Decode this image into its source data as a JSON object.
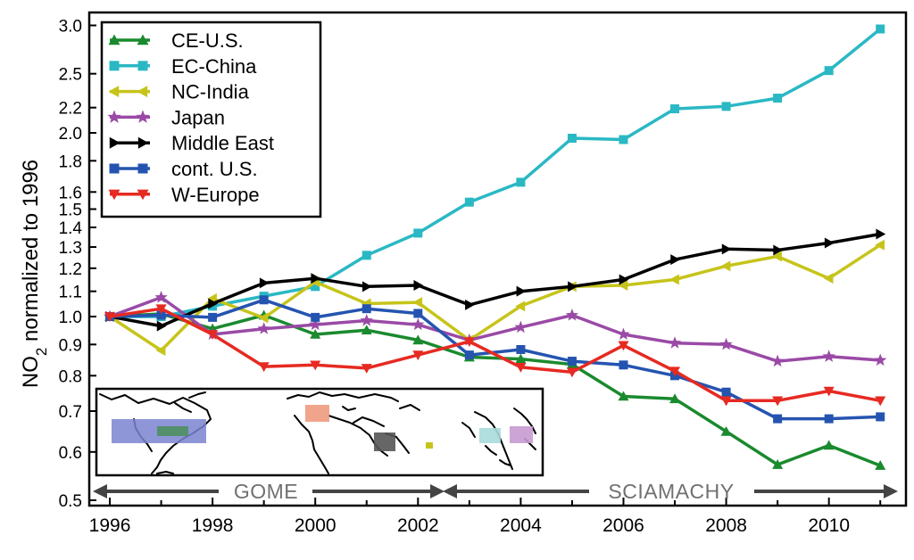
{
  "chart_data": {
    "type": "line",
    "ylabel": "NO2 normalized to 1996",
    "ylabel_main": "NO",
    "ylabel_sub": "2",
    "ylabel_rest": " normalized to 1996",
    "y_scale": "log",
    "ylim": [
      0.49,
      3.15
    ],
    "xlim": [
      1995.6,
      2011.5
    ],
    "y_ticks": [
      0.5,
      0.6,
      0.7,
      0.8,
      0.9,
      1.0,
      1.1,
      1.2,
      1.3,
      1.4,
      1.5,
      1.6,
      1.8,
      2.0,
      2.2,
      2.5,
      3.0
    ],
    "y_tick_labels": [
      "0.5",
      "0.6",
      "0.7",
      "0.8",
      "0.9",
      "1.0",
      "1.1",
      "1.2",
      "1.3",
      "1.4",
      "1.5",
      "1.6",
      "1.8",
      "2.0",
      "2.2",
      "2.5",
      "3.0"
    ],
    "x_ticks": [
      1996,
      1998,
      2000,
      2002,
      2004,
      2006,
      2008,
      2010
    ],
    "x_tick_labels": [
      "1996",
      "1998",
      "2000",
      "2002",
      "2004",
      "2006",
      "2008",
      "2010"
    ],
    "x": [
      1996,
      1997,
      1998,
      1999,
      2000,
      2001,
      2002,
      2003,
      2004,
      2005,
      2006,
      2007,
      2008,
      2009,
      2010,
      2011
    ],
    "legend_position": "top-left",
    "series": [
      {
        "name": "CE-U.S.",
        "color": "#1a8a2e",
        "marker": "triangle-up",
        "values": [
          1.0,
          1.01,
          0.955,
          1.005,
          0.935,
          0.95,
          0.915,
          0.858,
          0.852,
          0.835,
          0.74,
          0.733,
          0.648,
          0.572,
          0.615,
          0.57
        ]
      },
      {
        "name": "EC-China",
        "color": "#2ab8c4",
        "marker": "square",
        "values": [
          1.0,
          1.0,
          1.04,
          1.08,
          1.12,
          1.26,
          1.37,
          1.54,
          1.66,
          1.96,
          1.95,
          2.19,
          2.21,
          2.28,
          2.53,
          2.96
        ]
      },
      {
        "name": "NC-India",
        "color": "#c6c41a",
        "marker": "triangle-left",
        "values": [
          1.0,
          0.88,
          1.07,
          0.995,
          1.14,
          1.05,
          1.055,
          0.915,
          1.04,
          1.12,
          1.125,
          1.15,
          1.21,
          1.255,
          1.155,
          1.31
        ]
      },
      {
        "name": "Japan",
        "color": "#9a4aa6",
        "marker": "star",
        "values": [
          1.0,
          1.075,
          0.935,
          0.955,
          0.97,
          0.985,
          0.97,
          0.915,
          0.96,
          1.005,
          0.935,
          0.905,
          0.9,
          0.845,
          0.86,
          0.848
        ]
      },
      {
        "name": "Middle East",
        "color": "#000000",
        "marker": "triangle-right",
        "values": [
          1.0,
          0.965,
          1.05,
          1.135,
          1.155,
          1.12,
          1.125,
          1.045,
          1.1,
          1.12,
          1.15,
          1.24,
          1.29,
          1.285,
          1.32,
          1.365
        ]
      },
      {
        "name": "cont. U.S.",
        "color": "#2554b0",
        "marker": "square",
        "values": [
          1.0,
          1.005,
          0.997,
          1.065,
          0.997,
          1.03,
          1.012,
          0.865,
          0.883,
          0.845,
          0.833,
          0.8,
          0.752,
          0.68,
          0.68,
          0.685
        ]
      },
      {
        "name": "W-Europe",
        "color": "#e62a22",
        "marker": "triangle-down",
        "values": [
          1.0,
          1.03,
          0.935,
          0.828,
          0.833,
          0.823,
          0.865,
          0.91,
          0.826,
          0.811,
          0.897,
          0.814,
          0.728,
          0.728,
          0.755,
          0.728
        ]
      }
    ],
    "instrument_periods": [
      {
        "name": "GOME",
        "start": 1995.6,
        "end": 2002.6
      },
      {
        "name": "SCIAMACHY",
        "start": 2002.6,
        "end": 2011.5
      }
    ],
    "inset_map": {
      "regions": [
        {
          "color": "#7b84d0",
          "region": "cont. U.S."
        },
        {
          "color": "#4f8f62",
          "region": "CE-U.S."
        },
        {
          "color": "#f09a80",
          "region": "W-Europe"
        },
        {
          "color": "#555555",
          "region": "Middle East"
        },
        {
          "color": "#c6c41a",
          "region": "NC-India"
        },
        {
          "color": "#a8dada",
          "region": "EC-China"
        },
        {
          "color": "#c79ad0",
          "region": "Japan"
        }
      ]
    }
  }
}
